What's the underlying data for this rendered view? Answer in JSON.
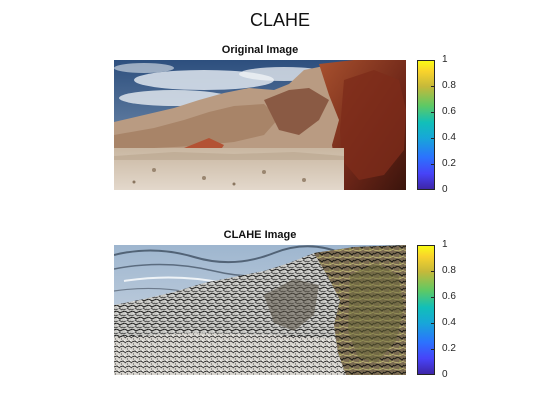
{
  "figure": {
    "title": "CLAHE"
  },
  "panels": [
    {
      "title": "Original Image",
      "image": "desert-rock-landscape-photo",
      "colorbar_ticks": [
        "0",
        "0.2",
        "0.4",
        "0.6",
        "0.8",
        "1"
      ]
    },
    {
      "title": "CLAHE Image",
      "image": "contrast-enhanced-landscape-photo",
      "colorbar_ticks": [
        "0",
        "0.2",
        "0.4",
        "0.6",
        "0.8",
        "1"
      ]
    }
  ],
  "colors": {
    "colormap": "parula",
    "background": "#ffffff"
  }
}
